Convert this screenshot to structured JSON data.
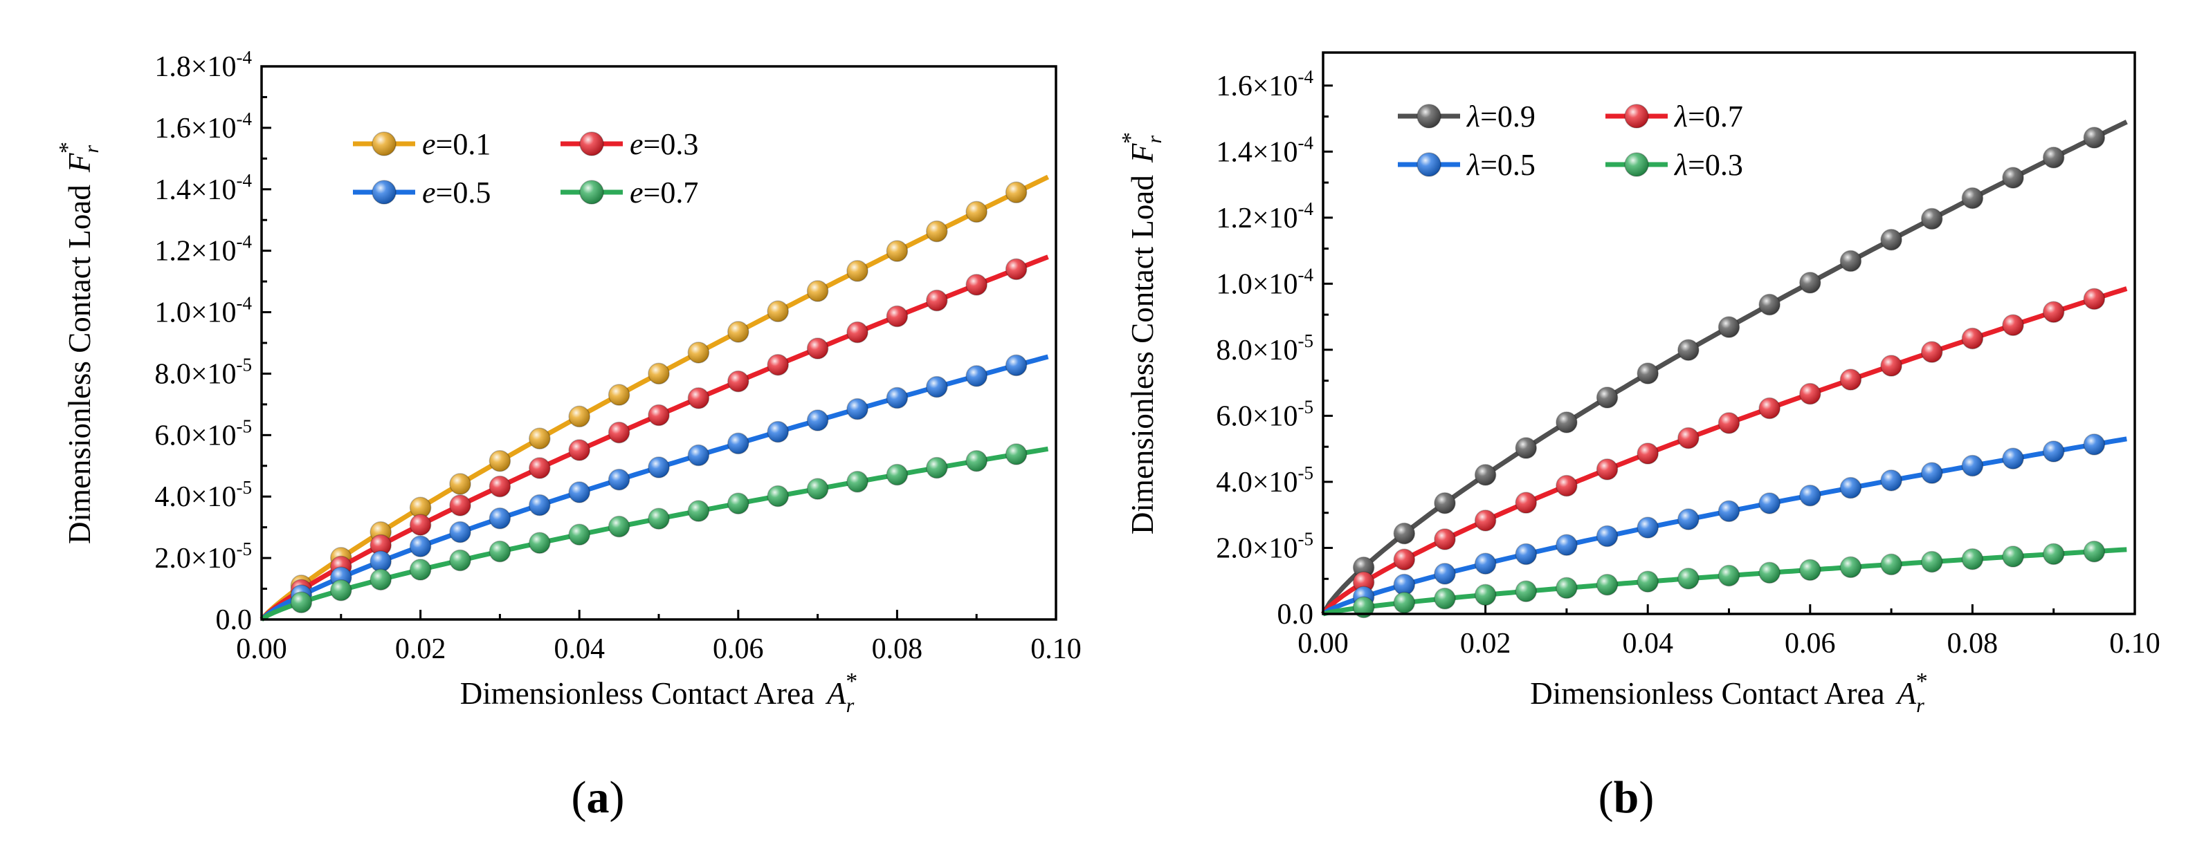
{
  "chart_data": [
    {
      "type": "line",
      "panel_label": {
        "open": "(",
        "letter": "a",
        "close": ")"
      },
      "xlabel": "Dimensionless Contact Area",
      "xlabel_symbol": "A",
      "xlabel_sub": "r",
      "xlabel_sup": "*",
      "ylabel": "Dimensionless Contact Load",
      "ylabel_symbol": "F",
      "ylabel_sub": "r",
      "ylabel_sup": "*",
      "xlim": [
        0,
        0.1
      ],
      "ylim": [
        0,
        0.00018
      ],
      "x_ticks": [
        {
          "value": 0,
          "label": "0.00"
        },
        {
          "value": 0.02,
          "label": "0.02"
        },
        {
          "value": 0.04,
          "label": "0.04"
        },
        {
          "value": 0.06,
          "label": "0.06"
        },
        {
          "value": 0.08,
          "label": "0.08"
        },
        {
          "value": 0.1,
          "label": "0.10"
        }
      ],
      "y_ticks": [
        {
          "value": 0,
          "mantissa": "0.0",
          "times": "",
          "exp": ""
        },
        {
          "value": 2e-05,
          "mantissa": "2.0",
          "times": "×10",
          "exp": "-5"
        },
        {
          "value": 4e-05,
          "mantissa": "4.0",
          "times": "×10",
          "exp": "-5"
        },
        {
          "value": 6e-05,
          "mantissa": "6.0",
          "times": "×10",
          "exp": "-5"
        },
        {
          "value": 8e-05,
          "mantissa": "8.0",
          "times": "×10",
          "exp": "-5"
        },
        {
          "value": 0.0001,
          "mantissa": "1.0",
          "times": "×10",
          "exp": "-4"
        },
        {
          "value": 0.00012,
          "mantissa": "1.2",
          "times": "×10",
          "exp": "-4"
        },
        {
          "value": 0.00014,
          "mantissa": "1.4",
          "times": "×10",
          "exp": "-4"
        },
        {
          "value": 0.00016,
          "mantissa": "1.6",
          "times": "×10",
          "exp": "-4"
        },
        {
          "value": 0.00018,
          "mantissa": "1.8",
          "times": "×10",
          "exp": "-4"
        }
      ],
      "legend_position": "top-left",
      "series": [
        {
          "name": "e=0.1",
          "symbol": "e",
          "value": "0.1",
          "color": "#E8A317",
          "final": 0.000144,
          "exponent": 0.86
        },
        {
          "name": "e=0.3",
          "symbol": "e",
          "value": "0.3",
          "color": "#E8202A",
          "final": 0.000118,
          "exponent": 0.84
        },
        {
          "name": "e=0.5",
          "symbol": "e",
          "value": "0.5",
          "color": "#1C6FE0",
          "final": 8.55e-05,
          "exponent": 0.8
        },
        {
          "name": "e=0.7",
          "symbol": "e",
          "value": "0.7",
          "color": "#2DAA58",
          "final": 5.55e-05,
          "exponent": 0.77
        }
      ]
    },
    {
      "type": "line",
      "panel_label": {
        "open": "(",
        "letter": "b",
        "close": ")"
      },
      "xlabel": "Dimensionless Contact Area",
      "xlabel_symbol": "A",
      "xlabel_sub": "r",
      "xlabel_sup": "*",
      "ylabel": "Dimensionless Contact Load",
      "ylabel_symbol": "F",
      "ylabel_sub": "r",
      "ylabel_sup": "*",
      "xlim": [
        0,
        0.1
      ],
      "ylim": [
        0,
        0.00017
      ],
      "x_ticks": [
        {
          "value": 0,
          "label": "0.00"
        },
        {
          "value": 0.02,
          "label": "0.02"
        },
        {
          "value": 0.04,
          "label": "0.04"
        },
        {
          "value": 0.06,
          "label": "0.06"
        },
        {
          "value": 0.08,
          "label": "0.08"
        },
        {
          "value": 0.1,
          "label": "0.10"
        }
      ],
      "y_ticks": [
        {
          "value": 0,
          "mantissa": "0.0",
          "times": "",
          "exp": ""
        },
        {
          "value": 2e-05,
          "mantissa": "2.0",
          "times": "×10",
          "exp": "-5"
        },
        {
          "value": 4e-05,
          "mantissa": "4.0",
          "times": "×10",
          "exp": "-5"
        },
        {
          "value": 6e-05,
          "mantissa": "6.0",
          "times": "×10",
          "exp": "-5"
        },
        {
          "value": 8e-05,
          "mantissa": "8.0",
          "times": "×10",
          "exp": "-5"
        },
        {
          "value": 0.0001,
          "mantissa": "1.0",
          "times": "×10",
          "exp": "-4"
        },
        {
          "value": 0.00012,
          "mantissa": "1.2",
          "times": "×10",
          "exp": "-4"
        },
        {
          "value": 0.00014,
          "mantissa": "1.4",
          "times": "×10",
          "exp": "-4"
        },
        {
          "value": 0.00016,
          "mantissa": "1.6",
          "times": "×10",
          "exp": "-4"
        }
      ],
      "legend_position": "top-left",
      "series": [
        {
          "name": "λ=0.9",
          "symbol": "λ",
          "value": "0.9",
          "color": "#505050",
          "final": 0.000149,
          "exponent": 0.79
        },
        {
          "name": "λ=0.7",
          "symbol": "λ",
          "value": "0.7",
          "color": "#E8202A",
          "final": 9.85e-05,
          "exponent": 0.78
        },
        {
          "name": "λ=0.5",
          "symbol": "λ",
          "value": "0.5",
          "color": "#1C6FE0",
          "final": 5.3e-05,
          "exponent": 0.78
        },
        {
          "name": "λ=0.3",
          "symbol": "λ",
          "value": "0.3",
          "color": "#2DAA58",
          "final": 1.95e-05,
          "exponent": 0.76
        }
      ]
    }
  ]
}
